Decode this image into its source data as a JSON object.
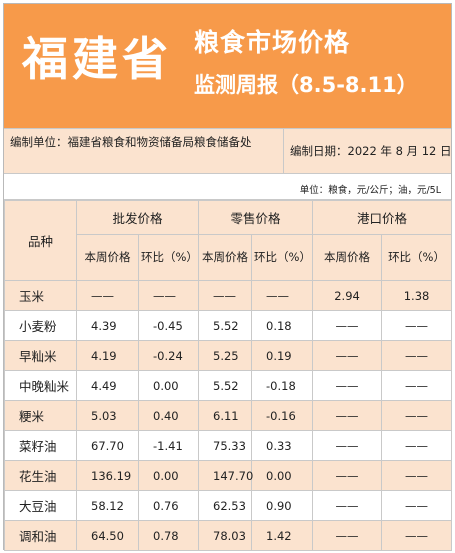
{
  "header": {
    "province": "福建省",
    "title": "粮食市场价格",
    "subtitle": "监测周报（8.5-8.11）"
  },
  "info": {
    "compiler": "编制单位：福建省粮食和物资储备局粮食储备处",
    "date": "编制日期：2022 年 8 月 12 日",
    "unit": "单位：粮食，元/公斤；油，元/5L"
  },
  "table": {
    "col_product": "品种",
    "groups": [
      "批发价格",
      "零售价格",
      "港口价格"
    ],
    "sub_this_week": "本周价格",
    "sub_wow": "环比（%）",
    "rows": [
      {
        "name": "玉米",
        "c": [
          "——",
          "——",
          "——",
          "——",
          "2.94",
          "1.38"
        ]
      },
      {
        "name": "小麦粉",
        "c": [
          "4.39",
          "-0.45",
          "5.52",
          "0.18",
          "——",
          "——"
        ]
      },
      {
        "name": "早籼米",
        "c": [
          "4.19",
          "-0.24",
          "5.25",
          "0.19",
          "——",
          "——"
        ]
      },
      {
        "name": "中晚籼米",
        "c": [
          "4.49",
          "0.00",
          "5.52",
          "-0.18",
          "——",
          "——"
        ]
      },
      {
        "name": "粳米",
        "c": [
          "5.03",
          "0.40",
          "6.11",
          "-0.16",
          "——",
          "——"
        ]
      },
      {
        "name": "菜籽油",
        "c": [
          "67.70",
          "-1.41",
          "75.33",
          "0.33",
          "——",
          "——"
        ]
      },
      {
        "name": "花生油",
        "c": [
          "136.19",
          "0.00",
          "147.70",
          "0.00",
          "——",
          "——"
        ]
      },
      {
        "name": "大豆油",
        "c": [
          "58.12",
          "0.76",
          "62.53",
          "0.90",
          "——",
          "——"
        ]
      },
      {
        "name": "调和油",
        "c": [
          "64.50",
          "0.78",
          "78.03",
          "1.42",
          "——",
          "——"
        ]
      }
    ]
  },
  "colors": {
    "banner": "#f79a4a",
    "band": "#fbe3cf",
    "border": "#c9c9c9"
  }
}
